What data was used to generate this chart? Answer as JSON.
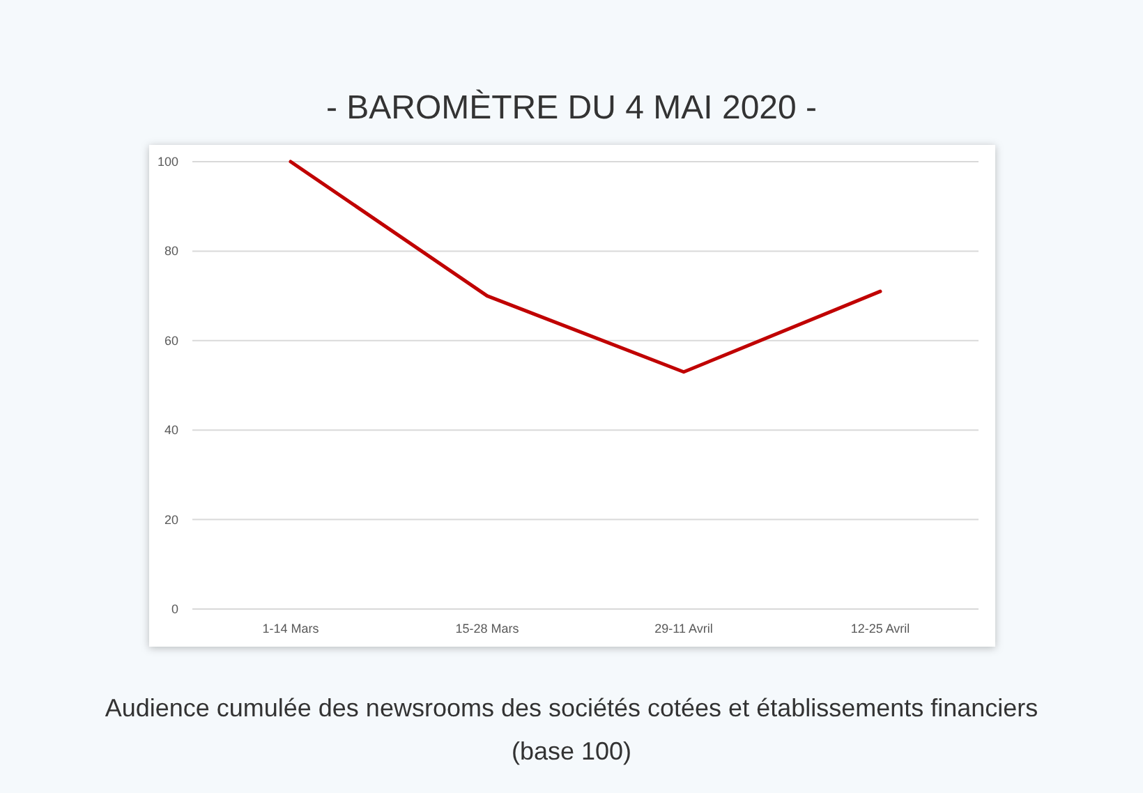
{
  "chart_data": {
    "type": "line",
    "title": "- BAROMÈTRE DU 4 MAI 2020 -",
    "categories": [
      "1-14 Mars",
      "15-28 Mars",
      "29-11 Avril",
      "12-25 Avril"
    ],
    "series": [
      {
        "color": "#c00000",
        "values": [
          100,
          70,
          53,
          71
        ]
      }
    ],
    "ylim": [
      0,
      100
    ],
    "yticks": [
      0,
      20,
      40,
      60,
      80,
      100
    ],
    "grid": "y",
    "marker": "none",
    "line_style": "solid",
    "annotations": [
      "Audience cumulée des newsrooms des sociétés cotées et établissements financiers",
      "(base 100)"
    ]
  }
}
